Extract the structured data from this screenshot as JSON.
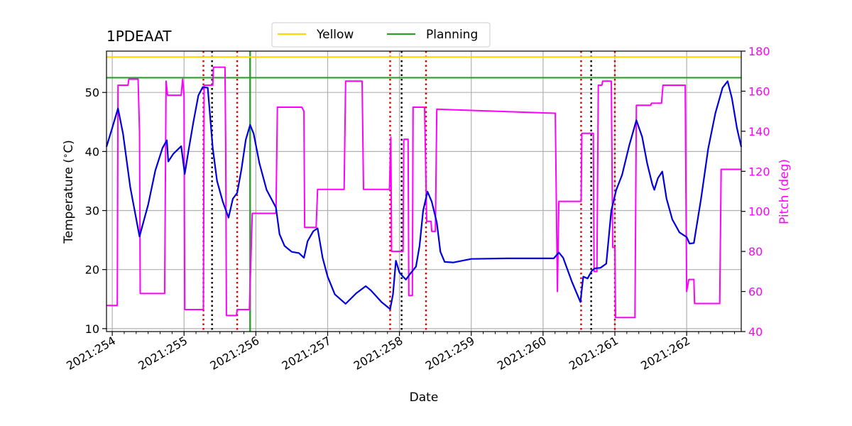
{
  "chart_data": {
    "type": "line",
    "title": "1PDEAAT",
    "xlabel": "Date",
    "ylabel": "Temperature ($^\\circ$C)",
    "y2label": "Pitch (deg)",
    "xlim": [
      253.92,
      262.76
    ],
    "ylim": [
      9.5,
      57.0
    ],
    "y2lim": [
      40,
      180
    ],
    "x_tick_values": [
      254,
      255,
      256,
      257,
      258,
      259,
      260,
      261,
      262
    ],
    "x_tick_labels": [
      "2021:254",
      "2021:255",
      "2021:256",
      "2021:257",
      "2021:258",
      "2021:259",
      "2021:260",
      "2021:261",
      "2021:262"
    ],
    "y_ticks": [
      10,
      20,
      30,
      40,
      50
    ],
    "y2_ticks": [
      40,
      60,
      80,
      100,
      120,
      140,
      160,
      180
    ],
    "grid": true,
    "legend_position": "top-center",
    "colors": {
      "temperature": "#0000dd",
      "pitch": "#ff00ff",
      "yellow": "#ffd700",
      "planning": "#2ca02c",
      "red_marker": "#dd0000",
      "black_marker": "#000000"
    },
    "limits": [
      {
        "name": "Yellow",
        "value": 56.0,
        "color": "#ffd700"
      },
      {
        "name": "Planning",
        "value": 52.5,
        "color": "#2ca02c"
      }
    ],
    "vertical_lines": {
      "red_dotted": [
        255.27,
        255.74,
        257.87,
        258.37,
        260.53,
        261.0
      ],
      "black_dotted": [
        255.39,
        258.03,
        260.67
      ],
      "green_solid": [
        255.92
      ]
    },
    "temperature_series": {
      "name": "Temperature",
      "points": [
        [
          253.92,
          40.8
        ],
        [
          254.0,
          44.0
        ],
        [
          254.08,
          47.3
        ],
        [
          254.15,
          43.0
        ],
        [
          254.25,
          34.0
        ],
        [
          254.38,
          25.6
        ],
        [
          254.5,
          31.0
        ],
        [
          254.6,
          36.8
        ],
        [
          254.7,
          40.6
        ],
        [
          254.76,
          41.9
        ],
        [
          254.78,
          38.3
        ],
        [
          254.85,
          39.6
        ],
        [
          254.96,
          40.9
        ],
        [
          255.01,
          36.2
        ],
        [
          255.06,
          40.0
        ],
        [
          255.13,
          45.0
        ],
        [
          255.2,
          49.5
        ],
        [
          255.26,
          50.9
        ],
        [
          255.33,
          50.8
        ],
        [
          255.4,
          40.5
        ],
        [
          255.46,
          35.0
        ],
        [
          255.54,
          31.5
        ],
        [
          255.62,
          28.8
        ],
        [
          255.68,
          32.0
        ],
        [
          255.74,
          33.0
        ],
        [
          255.8,
          37.0
        ],
        [
          255.86,
          42.0
        ],
        [
          255.92,
          44.5
        ],
        [
          255.97,
          43.0
        ],
        [
          256.05,
          38.0
        ],
        [
          256.15,
          33.5
        ],
        [
          256.28,
          30.5
        ],
        [
          256.33,
          26.0
        ],
        [
          256.4,
          24.0
        ],
        [
          256.5,
          23.0
        ],
        [
          256.6,
          22.8
        ],
        [
          256.67,
          22.0
        ],
        [
          256.72,
          24.8
        ],
        [
          256.8,
          26.5
        ],
        [
          256.86,
          27.0
        ],
        [
          256.93,
          22.0
        ],
        [
          257.0,
          18.8
        ],
        [
          257.1,
          15.8
        ],
        [
          257.25,
          14.2
        ],
        [
          257.4,
          16.0
        ],
        [
          257.53,
          17.2
        ],
        [
          257.6,
          16.5
        ],
        [
          257.75,
          14.5
        ],
        [
          257.87,
          13.3
        ],
        [
          257.91,
          15.8
        ],
        [
          257.95,
          21.5
        ],
        [
          258.0,
          19.5
        ],
        [
          258.05,
          18.8
        ],
        [
          258.09,
          18.3
        ],
        [
          258.15,
          19.3
        ],
        [
          258.23,
          20.5
        ],
        [
          258.28,
          24.0
        ],
        [
          258.33,
          30.0
        ],
        [
          258.39,
          33.2
        ],
        [
          258.45,
          31.5
        ],
        [
          258.52,
          28.0
        ],
        [
          258.57,
          23.0
        ],
        [
          258.63,
          21.3
        ],
        [
          258.75,
          21.2
        ],
        [
          259.0,
          21.8
        ],
        [
          259.5,
          21.9
        ],
        [
          260.0,
          21.9
        ],
        [
          260.15,
          21.9
        ],
        [
          260.22,
          22.9
        ],
        [
          260.28,
          22.0
        ],
        [
          260.4,
          18.0
        ],
        [
          260.52,
          14.5
        ],
        [
          260.56,
          18.8
        ],
        [
          260.62,
          18.5
        ],
        [
          260.68,
          19.8
        ],
        [
          260.72,
          20.2
        ],
        [
          260.8,
          20.3
        ],
        [
          260.88,
          21.0
        ],
        [
          260.95,
          30.0
        ],
        [
          261.02,
          33.5
        ],
        [
          261.1,
          36.0
        ],
        [
          261.2,
          41.0
        ],
        [
          261.3,
          45.3
        ],
        [
          261.38,
          42.5
        ],
        [
          261.45,
          38.0
        ],
        [
          261.52,
          34.5
        ],
        [
          261.55,
          33.5
        ],
        [
          261.6,
          35.5
        ],
        [
          261.66,
          36.6
        ],
        [
          261.72,
          32.0
        ],
        [
          261.8,
          28.5
        ],
        [
          261.9,
          26.3
        ],
        [
          262.0,
          25.5
        ],
        [
          262.04,
          24.4
        ],
        [
          262.1,
          24.5
        ],
        [
          262.2,
          32.0
        ],
        [
          262.3,
          40.5
        ],
        [
          262.4,
          46.5
        ],
        [
          262.5,
          50.8
        ],
        [
          262.57,
          51.9
        ],
        [
          262.63,
          49.0
        ],
        [
          262.7,
          44.0
        ],
        [
          262.76,
          40.8
        ]
      ]
    },
    "pitch_series": {
      "name": "Pitch",
      "points": [
        [
          253.92,
          53
        ],
        [
          254.07,
          53
        ],
        [
          254.08,
          163
        ],
        [
          254.22,
          163
        ],
        [
          254.23,
          166
        ],
        [
          254.36,
          166
        ],
        [
          254.38,
          140
        ],
        [
          254.39,
          59
        ],
        [
          254.73,
          59
        ],
        [
          254.75,
          165
        ],
        [
          254.77,
          158
        ],
        [
          254.96,
          158
        ],
        [
          254.98,
          166
        ],
        [
          255.0,
          158
        ],
        [
          255.01,
          51
        ],
        [
          255.27,
          51
        ],
        [
          255.28,
          163
        ],
        [
          255.32,
          163
        ],
        [
          255.4,
          163
        ],
        [
          255.41,
          172
        ],
        [
          255.57,
          172
        ],
        [
          255.58,
          133
        ],
        [
          255.59,
          48
        ],
        [
          255.73,
          48
        ],
        [
          255.74,
          51
        ],
        [
          255.91,
          51
        ],
        [
          255.95,
          99
        ],
        [
          256.28,
          99
        ],
        [
          256.3,
          152
        ],
        [
          256.64,
          152
        ],
        [
          256.67,
          150
        ],
        [
          256.68,
          92
        ],
        [
          256.84,
          92
        ],
        [
          256.86,
          111
        ],
        [
          257.23,
          111
        ],
        [
          257.25,
          165
        ],
        [
          257.48,
          165
        ],
        [
          257.5,
          111
        ],
        [
          257.86,
          111
        ],
        [
          257.88,
          137
        ],
        [
          257.89,
          80
        ],
        [
          258.05,
          80
        ],
        [
          258.06,
          136
        ],
        [
          258.12,
          136
        ],
        [
          258.13,
          58
        ],
        [
          258.18,
          58
        ],
        [
          258.19,
          152
        ],
        [
          258.35,
          152
        ],
        [
          258.38,
          95
        ],
        [
          258.44,
          95
        ],
        [
          258.45,
          90
        ],
        [
          258.5,
          90
        ],
        [
          258.52,
          151
        ],
        [
          260.17,
          149
        ],
        [
          260.2,
          60
        ],
        [
          260.22,
          105
        ],
        [
          260.53,
          105
        ],
        [
          260.54,
          139
        ],
        [
          260.7,
          139
        ],
        [
          260.71,
          70
        ],
        [
          260.75,
          70
        ],
        [
          260.77,
          163
        ],
        [
          260.82,
          163
        ],
        [
          260.83,
          165
        ],
        [
          260.95,
          165
        ],
        [
          260.97,
          82
        ],
        [
          261.0,
          82
        ],
        [
          261.01,
          47
        ],
        [
          261.28,
          47
        ],
        [
          261.3,
          153
        ],
        [
          261.5,
          153
        ],
        [
          261.51,
          154
        ],
        [
          261.65,
          154
        ],
        [
          261.67,
          163
        ],
        [
          261.98,
          163
        ],
        [
          262.0,
          60
        ],
        [
          262.03,
          66
        ],
        [
          262.1,
          66
        ],
        [
          262.11,
          54
        ],
        [
          262.46,
          54
        ],
        [
          262.48,
          121
        ],
        [
          262.76,
          121
        ]
      ]
    }
  }
}
